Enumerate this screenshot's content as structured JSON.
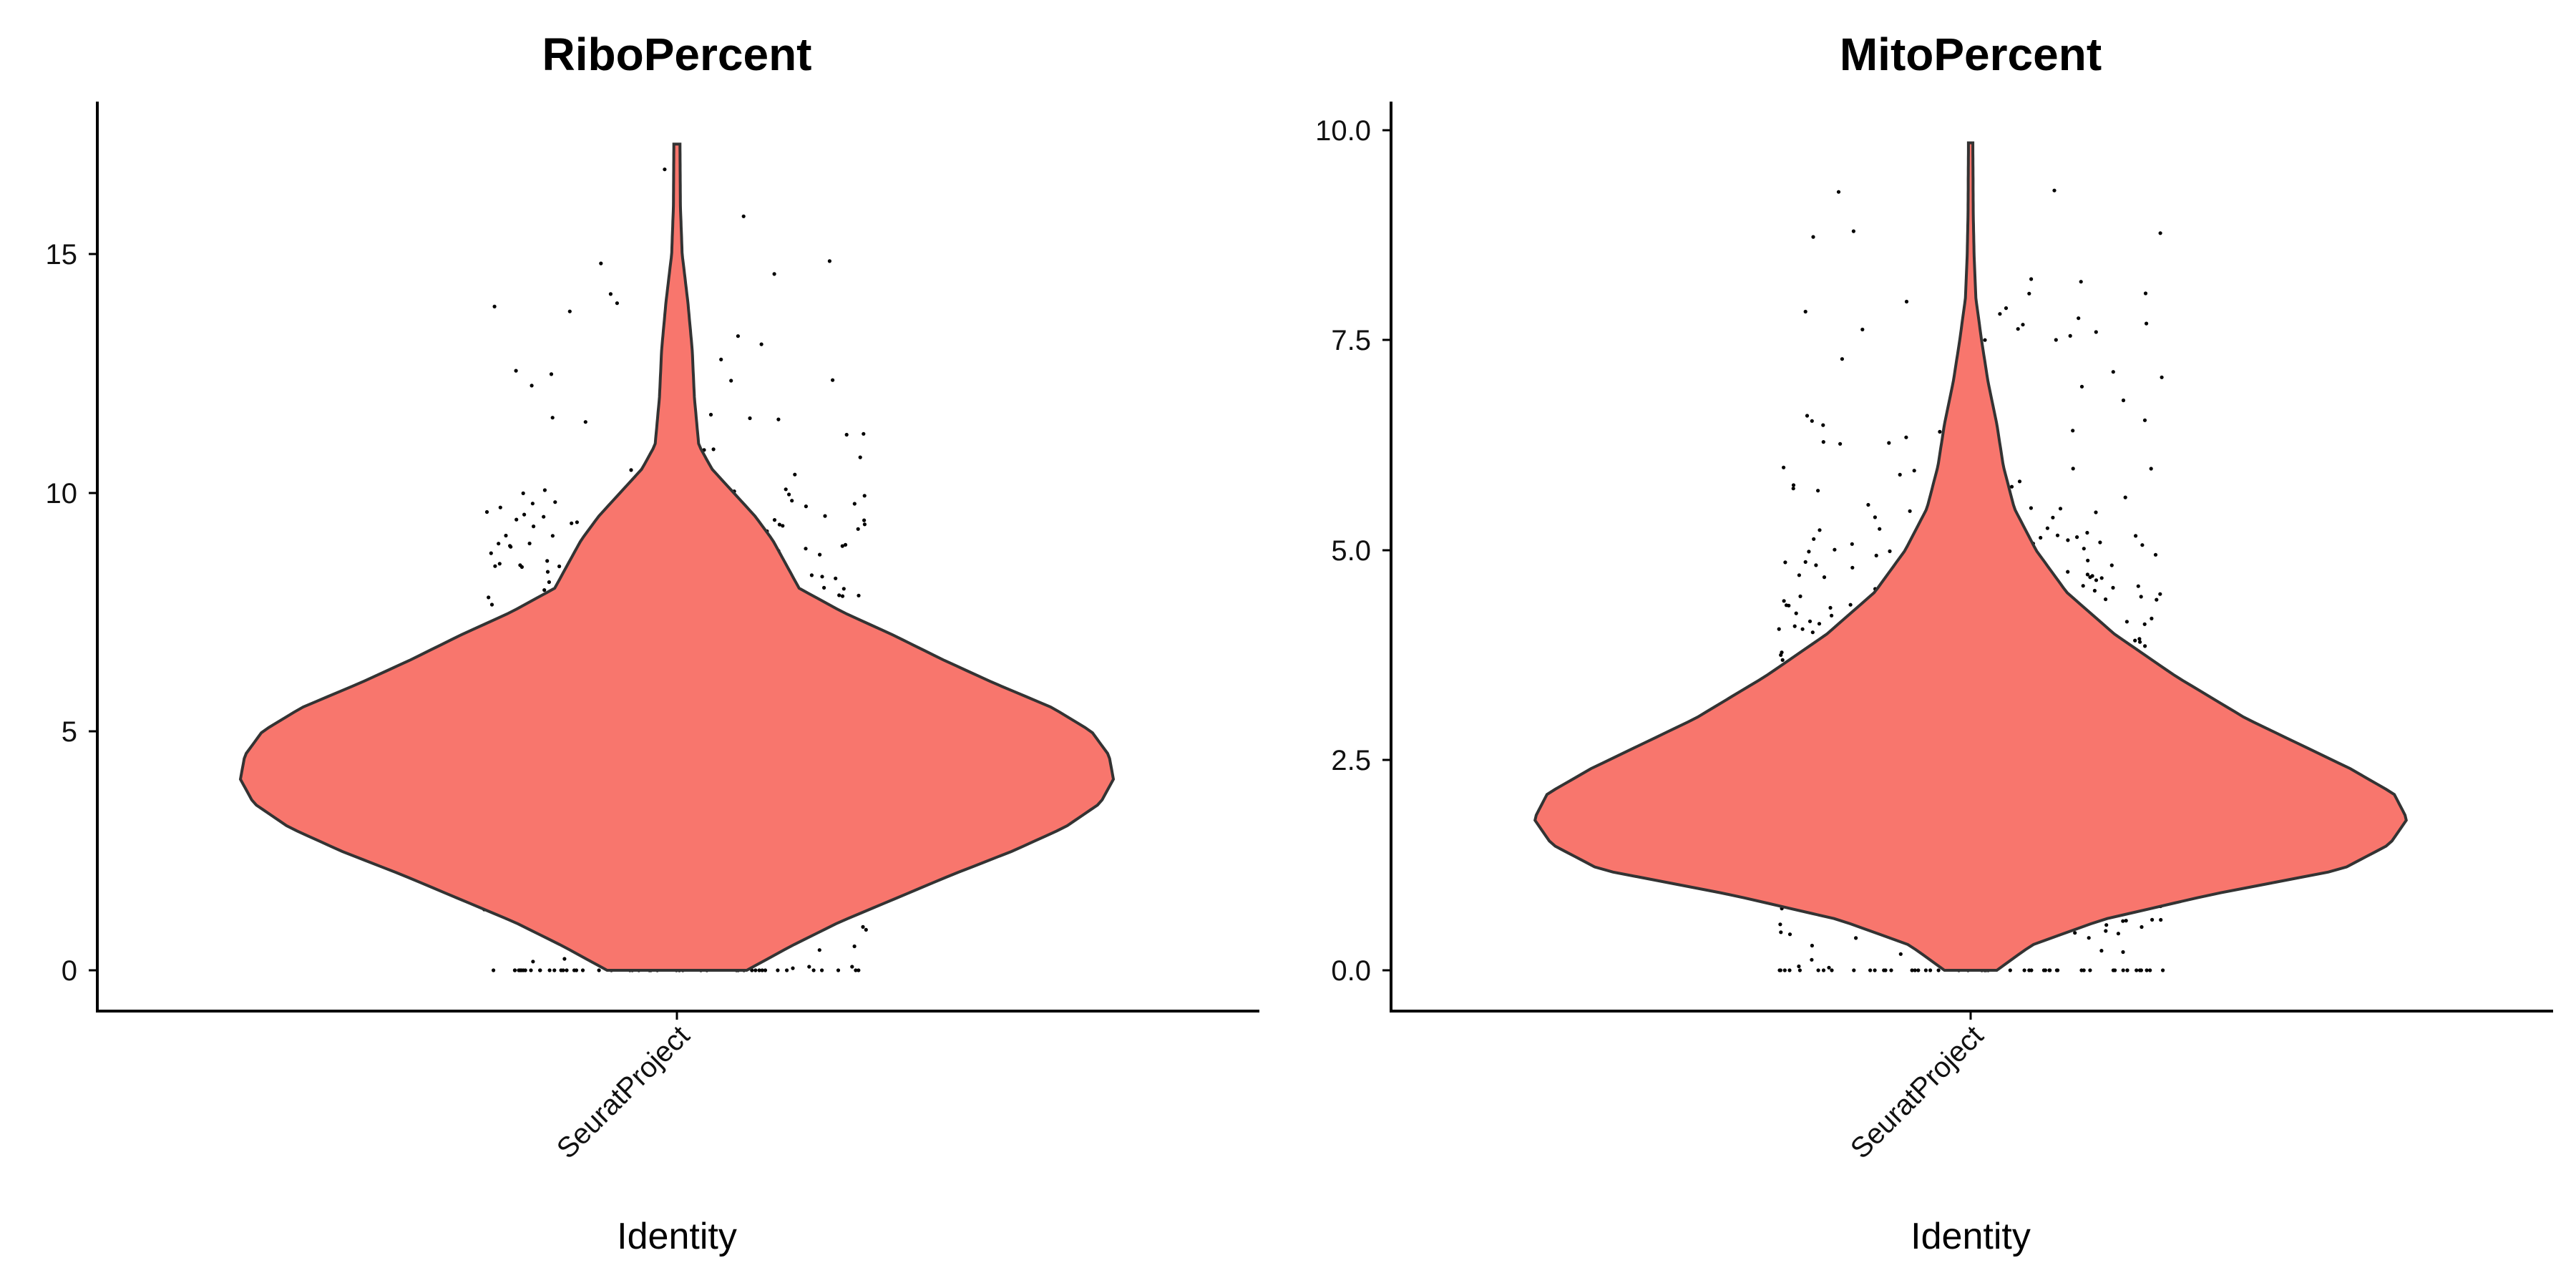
{
  "chart_data": [
    {
      "type": "violin",
      "title": "RiboPercent",
      "xlabel": "Identity",
      "ylabel": "",
      "categories": [
        "SeuratProject"
      ],
      "ylim": [
        -0.85,
        18.3
      ],
      "y_ticks": [
        0,
        5,
        10,
        15
      ],
      "y_tick_labels": [
        "0",
        "5",
        "10",
        "15"
      ],
      "fill_color": "#F8766D",
      "series": [
        {
          "category": "SeuratProject",
          "max": 17.3,
          "density_profile": [
            [
              0.0,
              0.16
            ],
            [
              0.5,
              0.26
            ],
            [
              1.0,
              0.37
            ],
            [
              1.5,
              0.5
            ],
            [
              2.0,
              0.63
            ],
            [
              2.5,
              0.77
            ],
            [
              3.0,
              0.89
            ],
            [
              3.5,
              0.97
            ],
            [
              4.0,
              1.0
            ],
            [
              4.5,
              0.99
            ],
            [
              5.0,
              0.95
            ],
            [
              5.5,
              0.86
            ],
            [
              6.0,
              0.73
            ],
            [
              6.5,
              0.61
            ],
            [
              7.0,
              0.5
            ],
            [
              7.5,
              0.38
            ],
            [
              8.0,
              0.28
            ],
            [
              8.5,
              0.25
            ],
            [
              9.0,
              0.22
            ],
            [
              9.5,
              0.18
            ],
            [
              10.0,
              0.13
            ],
            [
              10.5,
              0.08
            ],
            [
              11.0,
              0.05
            ],
            [
              12.0,
              0.04
            ],
            [
              13.0,
              0.035
            ],
            [
              14.0,
              0.025
            ],
            [
              15.0,
              0.012
            ],
            [
              16.0,
              0.008
            ],
            [
              17.3,
              0.007
            ]
          ],
          "n_points": 1180
        }
      ]
    },
    {
      "type": "violin",
      "title": "MitoPercent",
      "xlabel": "Identity",
      "ylabel": "",
      "categories": [
        "SeuratProject"
      ],
      "ylim": [
        -0.48,
        10.35
      ],
      "y_ticks": [
        0.0,
        2.5,
        5.0,
        7.5,
        10.0
      ],
      "y_tick_labels": [
        "0.0",
        "2.5",
        "5.0",
        "7.5",
        "10.0"
      ],
      "fill_color": "#F8766D",
      "series": [
        {
          "category": "SeuratProject",
          "max": 9.85,
          "density_profile": [
            [
              0.0,
              0.06
            ],
            [
              0.3,
              0.14
            ],
            [
              0.6,
              0.3
            ],
            [
              0.9,
              0.55
            ],
            [
              1.2,
              0.85
            ],
            [
              1.5,
              0.96
            ],
            [
              1.8,
              1.0
            ],
            [
              2.1,
              0.97
            ],
            [
              2.4,
              0.87
            ],
            [
              2.7,
              0.75
            ],
            [
              3.0,
              0.63
            ],
            [
              3.5,
              0.47
            ],
            [
              4.0,
              0.33
            ],
            [
              4.5,
              0.22
            ],
            [
              5.0,
              0.15
            ],
            [
              5.5,
              0.1
            ],
            [
              6.0,
              0.075
            ],
            [
              6.5,
              0.06
            ],
            [
              7.0,
              0.04
            ],
            [
              7.5,
              0.025
            ],
            [
              8.0,
              0.012
            ],
            [
              8.5,
              0.008
            ],
            [
              9.0,
              0.006
            ],
            [
              9.85,
              0.005
            ]
          ],
          "n_points": 1180
        }
      ]
    }
  ]
}
